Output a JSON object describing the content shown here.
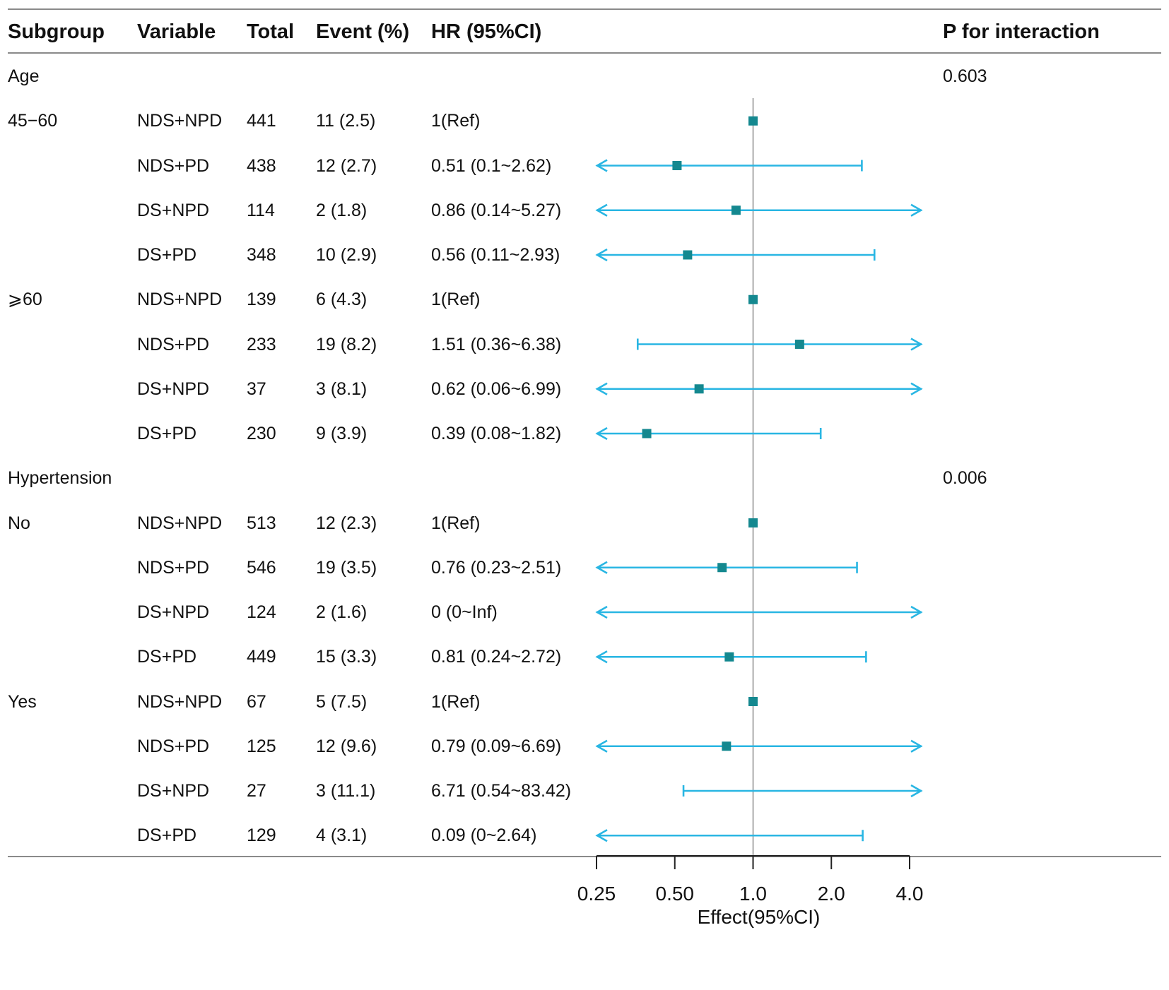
{
  "headers": {
    "subgroup": "Subgroup",
    "variable": "Variable",
    "total": "Total",
    "event": "Event (%)",
    "hr": "HR (95%CI)",
    "p": "P for interaction"
  },
  "colors": {
    "ci_line": "#29b6e3",
    "point": "#14888f",
    "ref_line": "#8c8c8c",
    "rule": "#8a8a8a",
    "text": "#111111"
  },
  "chart_data": {
    "type": "forest",
    "scale": "log2",
    "xlim": [
      0.25,
      4.0
    ],
    "reference": 1.0,
    "xticks": [
      0.25,
      0.5,
      1.0,
      2.0,
      4.0
    ],
    "xtick_labels": [
      "0.25",
      "0.50",
      "1.0",
      "2.0",
      "4.0"
    ],
    "xlabel": "Effect(95%CI)",
    "rows": [
      {
        "kind": "group",
        "subgroup": "Age",
        "p": "0.603"
      },
      {
        "kind": "data",
        "subgroup": "45−60",
        "variable": "NDS+NPD",
        "total": "441",
        "event": "11 (2.5)",
        "hr_text": "1(Ref)",
        "hr": 1.0,
        "lo": null,
        "hi": null
      },
      {
        "kind": "data",
        "subgroup": "",
        "variable": "NDS+PD",
        "total": "438",
        "event": "12 (2.7)",
        "hr_text": "0.51 (0.1~2.62)",
        "hr": 0.51,
        "lo": 0.1,
        "hi": 2.62
      },
      {
        "kind": "data",
        "subgroup": "",
        "variable": "DS+NPD",
        "total": "114",
        "event": "2 (1.8)",
        "hr_text": "0.86 (0.14~5.27)",
        "hr": 0.86,
        "lo": 0.14,
        "hi": 5.27
      },
      {
        "kind": "data",
        "subgroup": "",
        "variable": "DS+PD",
        "total": "348",
        "event": "10 (2.9)",
        "hr_text": "0.56 (0.11~2.93)",
        "hr": 0.56,
        "lo": 0.11,
        "hi": 2.93
      },
      {
        "kind": "data",
        "subgroup": "⩾60",
        "variable": "NDS+NPD",
        "total": "139",
        "event": "6 (4.3)",
        "hr_text": "1(Ref)",
        "hr": 1.0,
        "lo": null,
        "hi": null
      },
      {
        "kind": "data",
        "subgroup": "",
        "variable": "NDS+PD",
        "total": "233",
        "event": "19 (8.2)",
        "hr_text": "1.51 (0.36~6.38)",
        "hr": 1.51,
        "lo": 0.36,
        "hi": 6.38
      },
      {
        "kind": "data",
        "subgroup": "",
        "variable": "DS+NPD",
        "total": "37",
        "event": "3 (8.1)",
        "hr_text": "0.62 (0.06~6.99)",
        "hr": 0.62,
        "lo": 0.06,
        "hi": 6.99
      },
      {
        "kind": "data",
        "subgroup": "",
        "variable": "DS+PD",
        "total": "230",
        "event": "9 (3.9)",
        "hr_text": "0.39 (0.08~1.82)",
        "hr": 0.39,
        "lo": 0.08,
        "hi": 1.82
      },
      {
        "kind": "group",
        "subgroup": "Hypertension",
        "p": "0.006"
      },
      {
        "kind": "data",
        "subgroup": "No",
        "variable": "NDS+NPD",
        "total": "513",
        "event": "12 (2.3)",
        "hr_text": "1(Ref)",
        "hr": 1.0,
        "lo": null,
        "hi": null
      },
      {
        "kind": "data",
        "subgroup": "",
        "variable": "NDS+PD",
        "total": "546",
        "event": "19 (3.5)",
        "hr_text": "0.76 (0.23~2.51)",
        "hr": 0.76,
        "lo": 0.23,
        "hi": 2.51
      },
      {
        "kind": "data",
        "subgroup": "",
        "variable": "DS+NPD",
        "total": "124",
        "event": "2 (1.6)",
        "hr_text": "0 (0~Inf)",
        "hr": 0,
        "lo": 0,
        "hi": null
      },
      {
        "kind": "data",
        "subgroup": "",
        "variable": "DS+PD",
        "total": "449",
        "event": "15 (3.3)",
        "hr_text": "0.81 (0.24~2.72)",
        "hr": 0.81,
        "lo": 0.24,
        "hi": 2.72
      },
      {
        "kind": "data",
        "subgroup": "Yes",
        "variable": "NDS+NPD",
        "total": "67",
        "event": "5 (7.5)",
        "hr_text": "1(Ref)",
        "hr": 1.0,
        "lo": null,
        "hi": null
      },
      {
        "kind": "data",
        "subgroup": "",
        "variable": "NDS+PD",
        "total": "125",
        "event": "12 (9.6)",
        "hr_text": "0.79 (0.09~6.69)",
        "hr": 0.79,
        "lo": 0.09,
        "hi": 6.69
      },
      {
        "kind": "data",
        "subgroup": "",
        "variable": "DS+NPD",
        "total": "27",
        "event": "3 (11.1)",
        "hr_text": "6.71 (0.54~83.42)",
        "hr": 6.71,
        "lo": 0.54,
        "hi": 83.42
      },
      {
        "kind": "data",
        "subgroup": "",
        "variable": "DS+PD",
        "total": "129",
        "event": "4 (3.1)",
        "hr_text": "0.09 (0~2.64)",
        "hr": 0.09,
        "lo": 0,
        "hi": 2.64
      }
    ]
  }
}
